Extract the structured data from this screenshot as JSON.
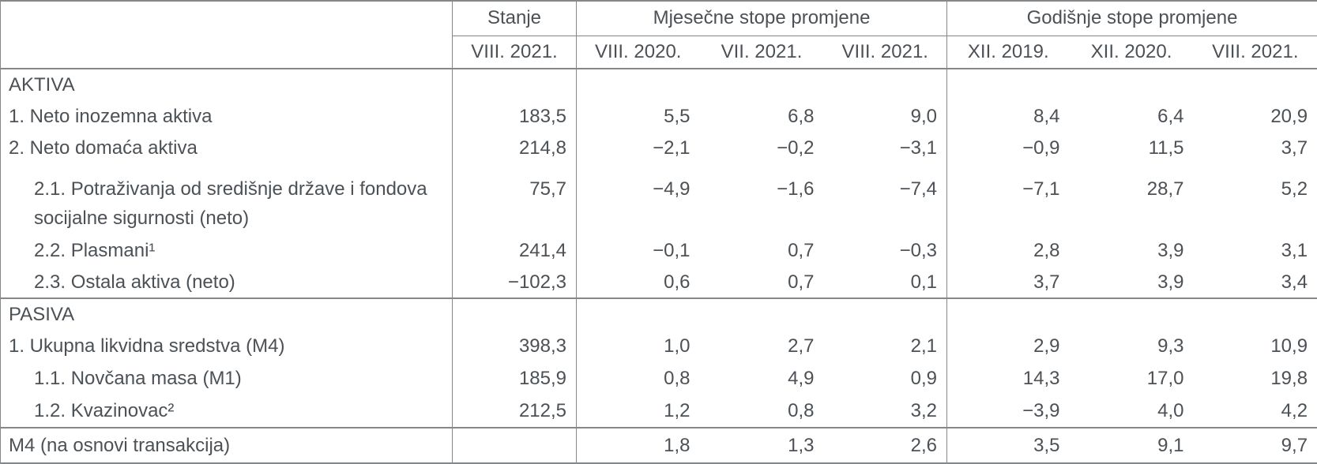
{
  "table": {
    "column_groups": {
      "stanje": "Stanje",
      "monthly": "Mjesečne stope promjene",
      "annual": "Godišnje stope promjene"
    },
    "period_headers": [
      "VIII. 2021.",
      "VIII. 2020.",
      "VII. 2021.",
      "VIII. 2021.",
      "XII. 2019.",
      "XII. 2020.",
      "VIII. 2021."
    ],
    "rows": [
      {
        "label": "AKTIVA",
        "indent": 0,
        "section": true,
        "values": [
          "",
          "",
          "",
          "",
          "",
          "",
          ""
        ]
      },
      {
        "label": "1. Neto inozemna aktiva",
        "indent": 0,
        "values": [
          "183,5",
          "5,5",
          "6,8",
          "9,0",
          "8,4",
          "6,4",
          "20,9"
        ]
      },
      {
        "label": "2. Neto domaća aktiva",
        "indent": 0,
        "values": [
          "214,8",
          "−2,1",
          "−0,2",
          "−3,1",
          "−0,9",
          "11,5",
          "3,7"
        ]
      },
      {
        "label": "2.1. Potraživanja od središnje države i fondova socijalne sigurnosti (neto)",
        "indent": 1,
        "tall": true,
        "values": [
          "75,7",
          "−4,9",
          "−1,6",
          "−7,4",
          "−7,1",
          "28,7",
          "5,2"
        ]
      },
      {
        "label": "2.2. Plasmani¹",
        "indent": 1,
        "values": [
          "241,4",
          "−0,1",
          "0,7",
          "−0,3",
          "2,8",
          "3,9",
          "3,1"
        ]
      },
      {
        "label": "2.3. Ostala aktiva (neto)",
        "indent": 1,
        "group_end": true,
        "values": [
          "−102,3",
          "0,6",
          "0,7",
          "0,1",
          "3,7",
          "3,9",
          "3,4"
        ]
      },
      {
        "label": "PASIVA",
        "indent": 0,
        "section": true,
        "values": [
          "",
          "",
          "",
          "",
          "",
          "",
          ""
        ]
      },
      {
        "label": "1. Ukupna likvidna sredstva (M4)",
        "indent": 0,
        "values": [
          "398,3",
          "1,0",
          "2,7",
          "2,1",
          "2,9",
          "9,3",
          "10,9"
        ]
      },
      {
        "label": "1.1. Novčana masa (M1)",
        "indent": 1,
        "values": [
          "185,9",
          "0,8",
          "4,9",
          "0,9",
          "14,3",
          "17,0",
          "19,8"
        ]
      },
      {
        "label": "1.2. Kvazinovac²",
        "indent": 1,
        "group_end": true,
        "values": [
          "212,5",
          "1,2",
          "0,8",
          "3,2",
          "−3,9",
          "4,0",
          "4,2"
        ]
      },
      {
        "label": "M4 (na osnovi transakcija)",
        "indent": 0,
        "total": true,
        "values": [
          "",
          "1,8",
          "1,3",
          "2,6",
          "3,5",
          "9,1",
          "9,7"
        ]
      }
    ]
  },
  "colors": {
    "text": "#4c5156",
    "border": "#85888b"
  }
}
